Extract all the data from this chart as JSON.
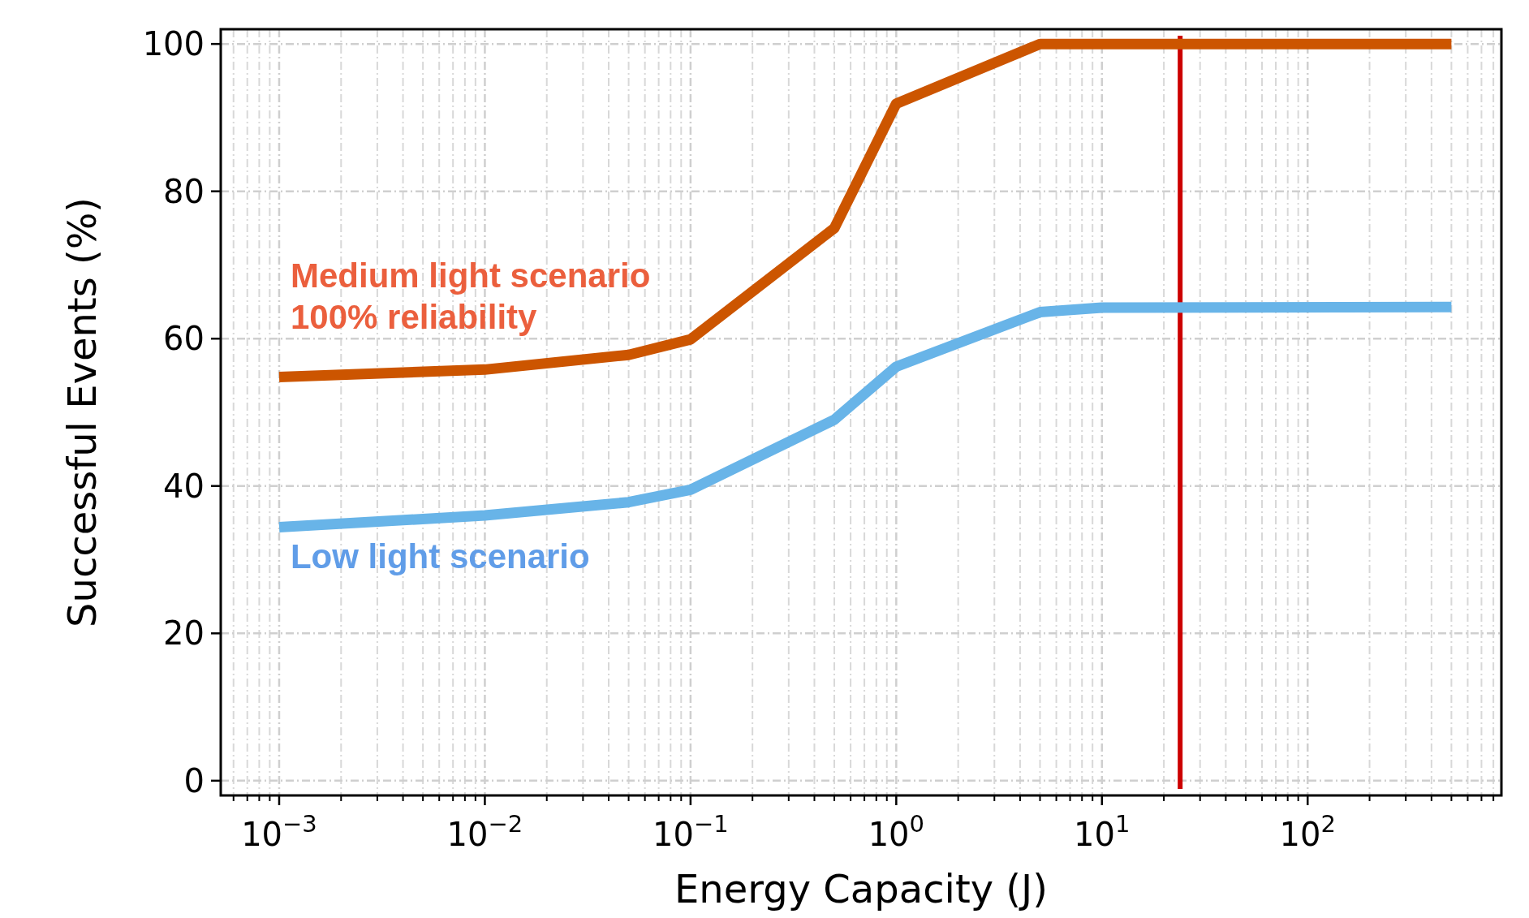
{
  "chart_data": {
    "type": "line",
    "xlabel": "Energy Capacity (J)",
    "ylabel": "Successful Events (%)",
    "log": "x",
    "x": [
      0.001,
      0.01,
      0.05,
      0.1,
      0.5,
      1,
      5,
      10,
      500
    ],
    "series": [
      {
        "name": "Medium light scenario\n100% reliability",
        "color": "#cc5500",
        "values": [
          54.8,
          55.8,
          57.8,
          59.9,
          75,
          91.9,
          100,
          100,
          100
        ]
      },
      {
        "name": "Low light scenario",
        "color": "#68b4e8",
        "values": [
          34.4,
          36,
          37.8,
          39.5,
          49,
          56.2,
          63.6,
          64.2,
          64.3
        ]
      }
    ],
    "xlim": [
      0.00052,
      875
    ],
    "ylim": [
      -2,
      102
    ],
    "xticks": [
      {
        "value": 0.001,
        "label": "10$^{−3}$"
      },
      {
        "value": 0.01,
        "label": "10$^{−2}$"
      },
      {
        "value": 0.1,
        "label": "10$^{−1}$"
      },
      {
        "value": 1,
        "label": "10$^{0}$"
      },
      {
        "value": 10,
        "label": "10$^{1}$"
      },
      {
        "value": 100,
        "label": "10$^{2}$"
      }
    ],
    "yticks": [
      0,
      20,
      40,
      60,
      80,
      100
    ],
    "ref_lines": [
      {
        "axis": "x",
        "value": 24,
        "label": null,
        "color": "#cc0000"
      }
    ],
    "grid": true,
    "marker": "none",
    "line_style": "solid"
  }
}
